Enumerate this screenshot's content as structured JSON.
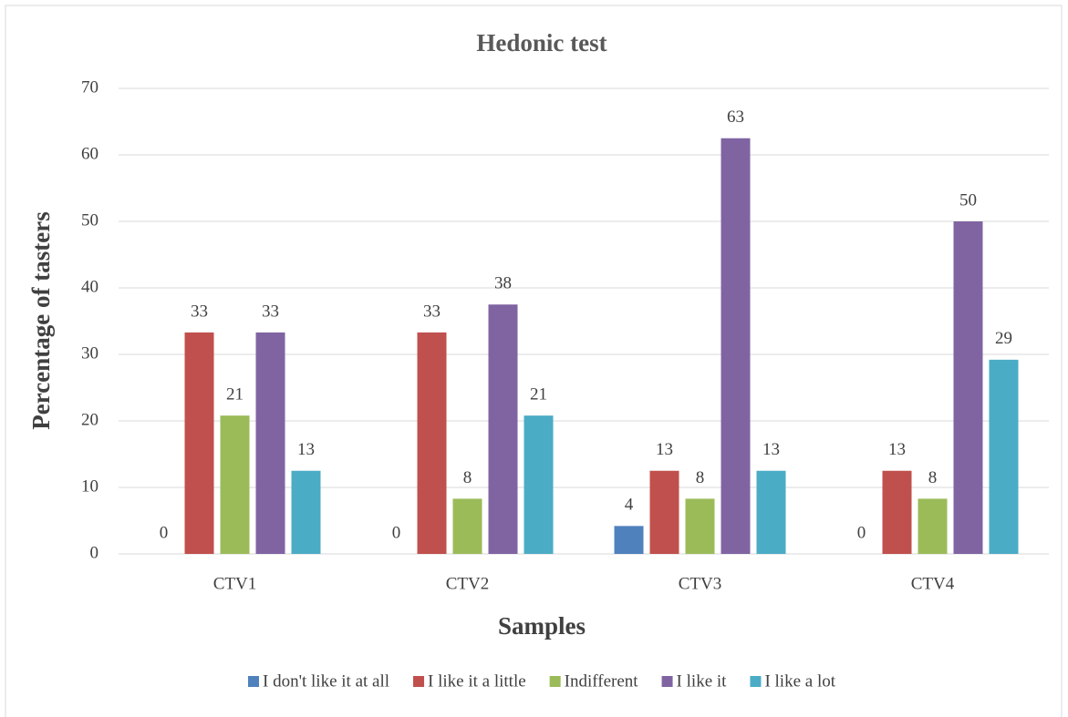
{
  "chart_data": {
    "type": "bar",
    "title": "Hedonic test",
    "x_label": "Samples",
    "y_label": "Percentage of tasters",
    "categories": [
      "CTV1",
      "CTV2",
      "CTV3",
      "CTV4"
    ],
    "series": [
      {
        "name": "I don't like it at all",
        "color": "#4f81bd",
        "values": [
          0,
          0,
          4.2,
          0
        ],
        "value_labels": [
          "0",
          "0",
          "4",
          "0"
        ]
      },
      {
        "name": "I like it a little",
        "color": "#c0504d",
        "values": [
          33.3,
          33.3,
          12.5,
          12.5
        ],
        "value_labels": [
          "33",
          "33",
          "13",
          "13"
        ]
      },
      {
        "name": "Indifferent",
        "color": "#9bbb59",
        "values": [
          20.8,
          8.3,
          8.3,
          8.3
        ],
        "value_labels": [
          "21",
          "8",
          "8",
          "8"
        ]
      },
      {
        "name": "I like it",
        "color": "#8064a2",
        "values": [
          33.3,
          37.5,
          62.5,
          50
        ],
        "value_labels": [
          "33",
          "38",
          "63",
          "50"
        ]
      },
      {
        "name": "I like a lot",
        "color": "#4bacc6",
        "values": [
          12.5,
          20.8,
          12.5,
          29.2
        ],
        "value_labels": [
          "13",
          "21",
          "13",
          "29"
        ]
      }
    ],
    "ylim": [
      0,
      70
    ],
    "yticks": [
      0,
      10,
      20,
      30,
      40,
      50,
      60,
      70
    ],
    "grid": true,
    "legend": "bottom"
  }
}
